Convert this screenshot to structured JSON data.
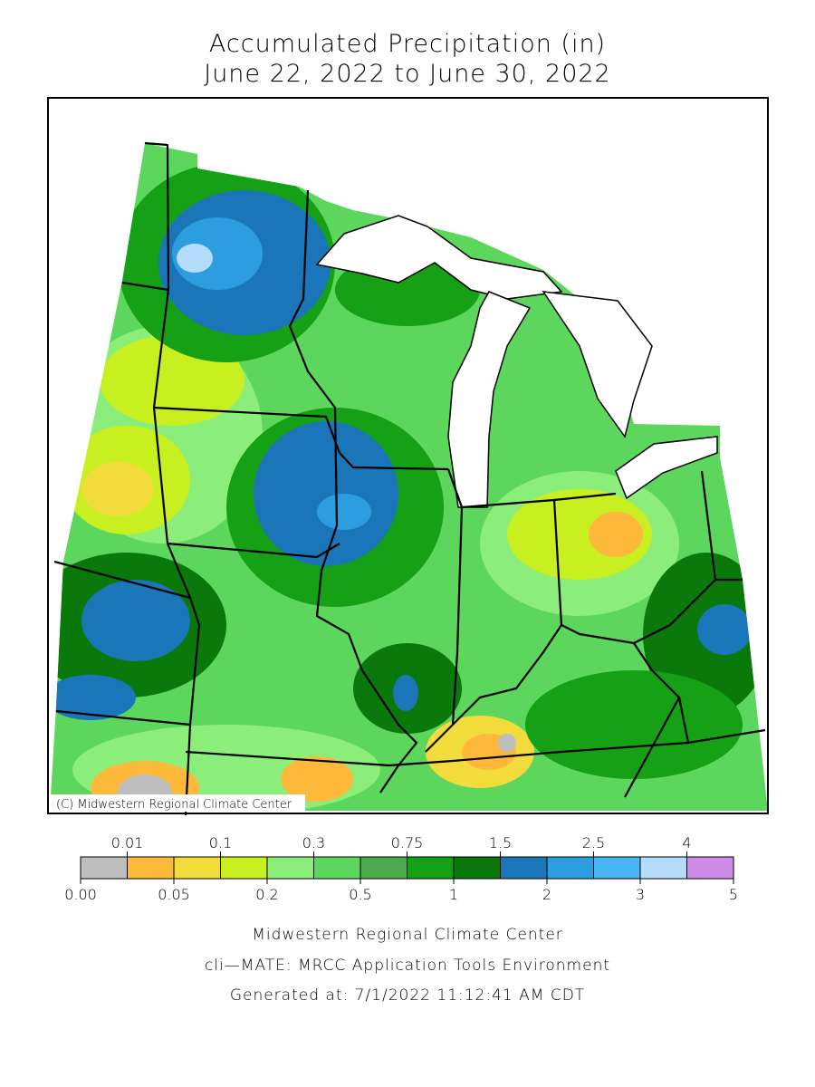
{
  "header": {
    "title_lines": [
      "Accumulated Precipitation (in)",
      "June 22, 2022 to June 30, 2022"
    ]
  },
  "map": {
    "credit": "(C) Midwestern Regional Climate Center"
  },
  "legend": {
    "boundaries": [
      {
        "value": 0,
        "label": "0.00"
      },
      0.01,
      0.05,
      0.1,
      0.2,
      0.3,
      0.5,
      0.75,
      1,
      1.5,
      2,
      2.5,
      3,
      4,
      5
    ],
    "colors": [
      "#bebebe",
      "#ffb93a",
      "#f2dc3c",
      "#c8f020",
      "#8cee7a",
      "#5cd65c",
      "#4caa4c",
      "#16a016",
      "#0a780a",
      "#1a76b8",
      "#2c9ee0",
      "#48b6f2",
      "#b6dcfc",
      "#d08ce8"
    ]
  },
  "footer": {
    "lines": [
      "Midwestern Regional Climate Center",
      "cli—MATE: MRCC Application Tools Environment",
      "Generated at: 7/1/2022 11:12:41 AM CDT"
    ]
  }
}
